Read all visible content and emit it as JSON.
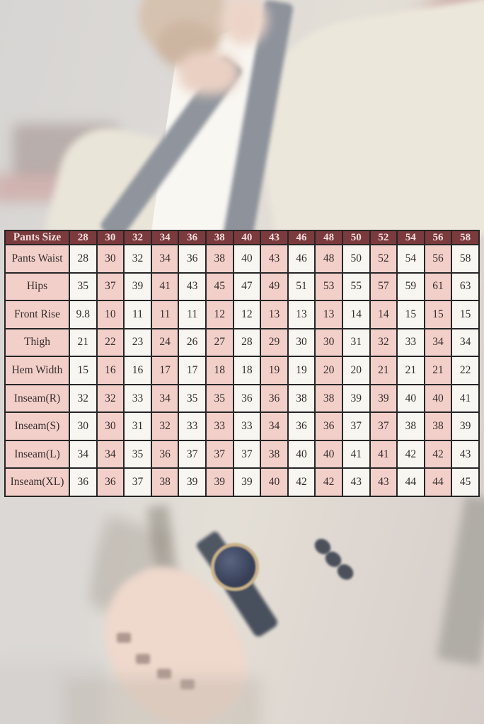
{
  "chart_data": {
    "type": "table",
    "header": [
      "Pants Size",
      "28",
      "30",
      "32",
      "34",
      "36",
      "38",
      "40",
      "43",
      "46",
      "48",
      "50",
      "52",
      "54",
      "56",
      "58"
    ],
    "rows": [
      {
        "label": "Pants Waist",
        "values": [
          "28",
          "30",
          "32",
          "34",
          "36",
          "38",
          "40",
          "43",
          "46",
          "48",
          "50",
          "52",
          "54",
          "56",
          "58"
        ]
      },
      {
        "label": "Hips",
        "values": [
          "35",
          "37",
          "39",
          "41",
          "43",
          "45",
          "47",
          "49",
          "51",
          "53",
          "55",
          "57",
          "59",
          "61",
          "63"
        ]
      },
      {
        "label": "Front Rise",
        "values": [
          "9.8",
          "10",
          "11",
          "11",
          "11",
          "12",
          "12",
          "13",
          "13",
          "13",
          "14",
          "14",
          "15",
          "15",
          "15"
        ]
      },
      {
        "label": "Thigh",
        "values": [
          "21",
          "22",
          "23",
          "24",
          "26",
          "27",
          "28",
          "29",
          "30",
          "30",
          "31",
          "32",
          "33",
          "34",
          "34"
        ]
      },
      {
        "label": "Hem Width",
        "values": [
          "15",
          "16",
          "16",
          "17",
          "17",
          "18",
          "18",
          "19",
          "19",
          "20",
          "20",
          "21",
          "21",
          "21",
          "22"
        ]
      },
      {
        "label": "Inseam(R)",
        "values": [
          "32",
          "32",
          "33",
          "34",
          "35",
          "35",
          "36",
          "36",
          "38",
          "38",
          "39",
          "39",
          "40",
          "40",
          "41"
        ]
      },
      {
        "label": "Inseam(S)",
        "values": [
          "30",
          "30",
          "31",
          "32",
          "33",
          "33",
          "33",
          "34",
          "36",
          "36",
          "37",
          "37",
          "38",
          "38",
          "39"
        ]
      },
      {
        "label": "Inseam(L)",
        "values": [
          "34",
          "34",
          "35",
          "36",
          "37",
          "37",
          "37",
          "38",
          "40",
          "40",
          "41",
          "41",
          "42",
          "42",
          "43"
        ]
      },
      {
        "label": "Inseam(XL)",
        "values": [
          "36",
          "36",
          "37",
          "38",
          "39",
          "39",
          "39",
          "40",
          "42",
          "42",
          "43",
          "43",
          "44",
          "44",
          "45"
        ]
      }
    ]
  },
  "colors": {
    "header_bg": "#7b3a3d",
    "header_text": "#f0dcdc",
    "pink_cell": "#f3cfca",
    "white_cell": "#f8f6f1",
    "border": "#262626",
    "cell_text": "#352e2c"
  }
}
